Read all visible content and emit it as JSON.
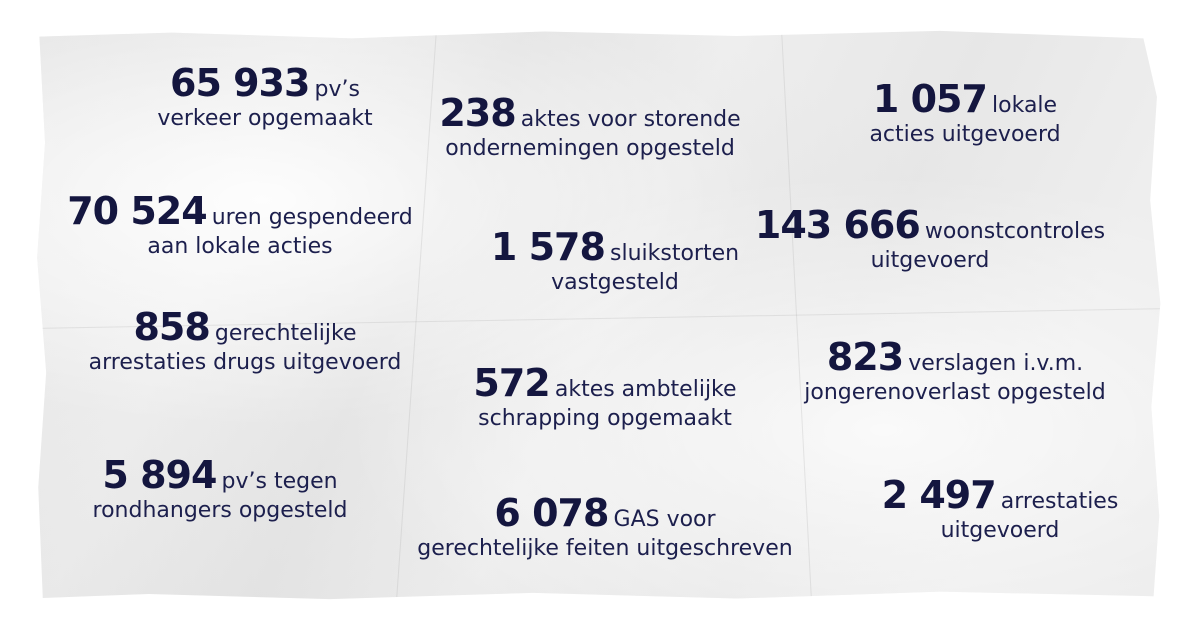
{
  "stats": [
    {
      "number": "65 933",
      "text1": "pv’s",
      "text2": "verkeer opgemaakt"
    },
    {
      "number": "238",
      "text1": "aktes voor storende",
      "text2": "ondernemingen opgesteld"
    },
    {
      "number": "1 057",
      "text1": "lokale",
      "text2": "acties uitgevoerd"
    },
    {
      "number": "70 524",
      "text1": "uren gespendeerd",
      "text2": "aan lokale acties"
    },
    {
      "number": "1 578",
      "text1": "sluikstorten",
      "text2": "vastgesteld"
    },
    {
      "number": "143 666",
      "text1": "woonstcontroles",
      "text2": "uitgevoerd"
    },
    {
      "number": "858",
      "text1": "gerechtelijke",
      "text2": "arrestaties drugs uitgevoerd"
    },
    {
      "number": "572",
      "text1": "aktes ambtelijke",
      "text2": "schrapping opgemaakt"
    },
    {
      "number": "823",
      "text1": "verslagen i.v.m.",
      "text2": "jongerenoverlast opgesteld"
    },
    {
      "number": "5 894",
      "text1": "pv’s tegen",
      "text2": "rondhangers opgesteld"
    },
    {
      "number": "6 078",
      "text1": "GAS voor",
      "text2": "gerechtelijke feiten uitgeschreven"
    },
    {
      "number": "2 497",
      "text1": "arrestaties",
      "text2": "uitgevoerd"
    }
  ],
  "colors": {
    "text": "#1c1f4d",
    "paper": "#eeeeee"
  }
}
